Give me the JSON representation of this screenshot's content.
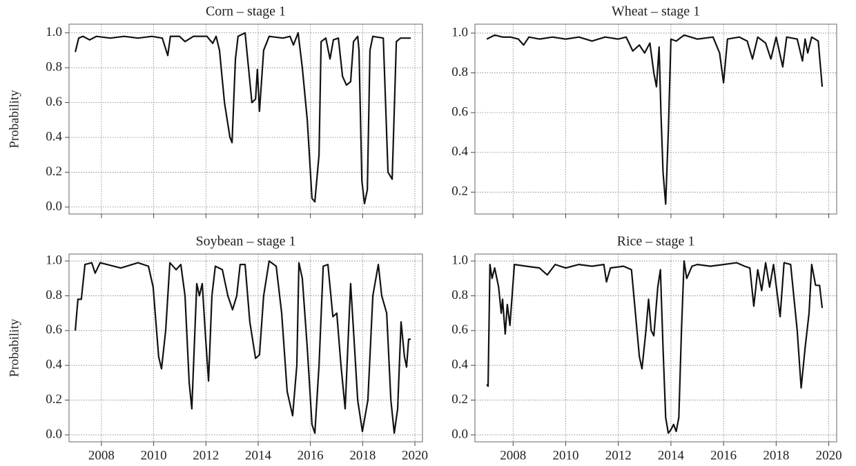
{
  "chart_data": [
    {
      "type": "line",
      "title": "Corn – stage 1",
      "ylabel": "Probability",
      "color": "#111111",
      "grid": true,
      "xtick_labels": false,
      "xlim": [
        2006.76,
        2020.29
      ],
      "ylim": [
        -0.04,
        1.05
      ],
      "xticks": [
        2008,
        2010,
        2012,
        2014,
        2016,
        2018,
        2020
      ],
      "yticks": [
        {
          "value": 0,
          "label": "0.0"
        },
        0.2,
        0.4,
        0.6,
        0.8,
        {
          "value": 1,
          "label": "1.0"
        }
      ],
      "x": [
        2007.0,
        2007.13,
        2007.29,
        2007.55,
        2007.81,
        2008.34,
        2008.87,
        2009.4,
        2009.93,
        2010.33,
        2010.54,
        2010.64,
        2010.99,
        2011.2,
        2011.52,
        2012.04,
        2012.26,
        2012.39,
        2012.52,
        2012.71,
        2012.92,
        2013.0,
        2013.13,
        2013.23,
        2013.5,
        2013.63,
        2013.76,
        2013.9,
        2013.97,
        2014.05,
        2014.21,
        2014.42,
        2014.95,
        2015.22,
        2015.35,
        2015.53,
        2015.69,
        2015.88,
        2016.06,
        2016.17,
        2016.33,
        2016.41,
        2016.59,
        2016.75,
        2016.88,
        2017.07,
        2017.23,
        2017.38,
        2017.54,
        2017.65,
        2017.81,
        2017.86,
        2017.97,
        2018.07,
        2018.18,
        2018.28,
        2018.39,
        2018.79,
        2018.97,
        2019.13,
        2019.29,
        2019.45,
        2019.84
      ],
      "values": [
        0.89,
        0.97,
        0.98,
        0.96,
        0.98,
        0.97,
        0.98,
        0.97,
        0.98,
        0.97,
        0.87,
        0.98,
        0.98,
        0.95,
        0.98,
        0.98,
        0.94,
        0.98,
        0.9,
        0.6,
        0.4,
        0.37,
        0.85,
        0.98,
        1.0,
        0.8,
        0.6,
        0.62,
        0.79,
        0.55,
        0.9,
        0.98,
        0.97,
        0.98,
        0.93,
        1.0,
        0.8,
        0.5,
        0.05,
        0.03,
        0.3,
        0.95,
        0.97,
        0.85,
        0.96,
        0.97,
        0.75,
        0.7,
        0.72,
        0.95,
        0.98,
        0.9,
        0.15,
        0.02,
        0.1,
        0.9,
        0.98,
        0.97,
        0.2,
        0.16,
        0.95,
        0.97,
        0.97
      ]
    },
    {
      "type": "line",
      "title": "Wheat – stage 1",
      "color": "#111111",
      "grid": true,
      "xtick_labels": false,
      "xlim": [
        2006.55,
        2020.3
      ],
      "ylim": [
        0.09,
        1.045
      ],
      "xticks": [
        2008,
        2010,
        2012,
        2014,
        2016,
        2018,
        2020
      ],
      "yticks": [
        0.2,
        0.4,
        0.6,
        0.8,
        {
          "value": 1,
          "label": "1.0"
        }
      ],
      "x": [
        2007.0,
        2007.3,
        2007.6,
        2007.9,
        2008.2,
        2008.4,
        2008.6,
        2009.0,
        2009.5,
        2010.0,
        2010.5,
        2011.0,
        2011.5,
        2012.0,
        2012.3,
        2012.55,
        2012.8,
        2013.0,
        2013.2,
        2013.35,
        2013.45,
        2013.55,
        2013.62,
        2013.7,
        2013.8,
        2013.9,
        2014.0,
        2014.2,
        2014.5,
        2015.0,
        2015.6,
        2015.85,
        2016.0,
        2016.15,
        2016.6,
        2016.9,
        2017.1,
        2017.3,
        2017.6,
        2017.8,
        2018.0,
        2018.25,
        2018.4,
        2018.8,
        2019.0,
        2019.1,
        2019.2,
        2019.35,
        2019.6,
        2019.75
      ],
      "values": [
        0.97,
        0.99,
        0.98,
        0.98,
        0.97,
        0.94,
        0.98,
        0.97,
        0.98,
        0.97,
        0.98,
        0.96,
        0.98,
        0.97,
        0.98,
        0.91,
        0.94,
        0.9,
        0.95,
        0.8,
        0.73,
        0.93,
        0.6,
        0.3,
        0.14,
        0.5,
        0.97,
        0.96,
        0.99,
        0.97,
        0.98,
        0.9,
        0.75,
        0.97,
        0.98,
        0.96,
        0.87,
        0.98,
        0.95,
        0.87,
        0.98,
        0.83,
        0.98,
        0.97,
        0.86,
        0.97,
        0.9,
        0.98,
        0.96,
        0.73
      ]
    },
    {
      "type": "line",
      "title": "Soybean – stage 1",
      "ylabel": "Probability",
      "color": "#111111",
      "grid": true,
      "xtick_labels": true,
      "xlim": [
        2006.76,
        2020.29
      ],
      "ylim": [
        -0.04,
        1.04
      ],
      "xticks": [
        2008,
        2010,
        2012,
        2014,
        2016,
        2018,
        2020
      ],
      "yticks": [
        {
          "value": 0,
          "label": "0.0"
        },
        0.2,
        0.4,
        0.6,
        0.8,
        {
          "value": 1,
          "label": "1.0"
        }
      ],
      "x": [
        2007.0,
        2007.1,
        2007.23,
        2007.37,
        2007.63,
        2007.76,
        2007.95,
        2008.74,
        2009.4,
        2009.8,
        2009.98,
        2010.19,
        2010.3,
        2010.46,
        2010.62,
        2010.86,
        2011.04,
        2011.2,
        2011.36,
        2011.46,
        2011.65,
        2011.75,
        2011.86,
        2011.97,
        2012.1,
        2012.23,
        2012.36,
        2012.63,
        2012.84,
        2013.02,
        2013.18,
        2013.31,
        2013.5,
        2013.68,
        2013.9,
        2014.05,
        2014.21,
        2014.42,
        2014.69,
        2014.9,
        2015.11,
        2015.32,
        2015.48,
        2015.56,
        2015.69,
        2015.88,
        2016.06,
        2016.17,
        2016.33,
        2016.49,
        2016.67,
        2016.86,
        2017.01,
        2017.17,
        2017.33,
        2017.46,
        2017.54,
        2017.65,
        2017.81,
        2017.99,
        2018.2,
        2018.39,
        2018.6,
        2018.73,
        2018.92,
        2019.08,
        2019.21,
        2019.34,
        2019.47,
        2019.6,
        2019.68,
        2019.76,
        2019.84
      ],
      "values": [
        0.6,
        0.78,
        0.78,
        0.98,
        0.99,
        0.93,
        0.99,
        0.96,
        0.99,
        0.97,
        0.85,
        0.45,
        0.38,
        0.6,
        0.99,
        0.95,
        0.98,
        0.8,
        0.3,
        0.15,
        0.87,
        0.8,
        0.87,
        0.6,
        0.31,
        0.8,
        0.97,
        0.95,
        0.8,
        0.72,
        0.8,
        0.98,
        0.98,
        0.65,
        0.44,
        0.46,
        0.8,
        1.0,
        0.97,
        0.7,
        0.25,
        0.11,
        0.4,
        0.99,
        0.9,
        0.5,
        0.06,
        0.01,
        0.4,
        0.97,
        0.98,
        0.68,
        0.7,
        0.4,
        0.15,
        0.6,
        0.87,
        0.6,
        0.2,
        0.02,
        0.2,
        0.8,
        0.98,
        0.8,
        0.7,
        0.2,
        0.01,
        0.15,
        0.65,
        0.45,
        0.39,
        0.55,
        0.55
      ]
    },
    {
      "type": "line",
      "title": "Rice – stage 1",
      "color": "#111111",
      "grid": true,
      "xtick_labels": true,
      "xlim": [
        2006.55,
        2020.3
      ],
      "ylim": [
        -0.04,
        1.04
      ],
      "xticks": [
        2008,
        2010,
        2012,
        2014,
        2016,
        2018,
        2020
      ],
      "yticks": [
        {
          "value": 0,
          "label": "0.0"
        },
        0.2,
        0.4,
        0.6,
        0.8,
        {
          "value": 1,
          "label": "1.0"
        }
      ],
      "x": [
        2007.0,
        2007.05,
        2007.12,
        2007.2,
        2007.3,
        2007.45,
        2007.55,
        2007.6,
        2007.7,
        2007.78,
        2007.88,
        2008.05,
        2008.5,
        2009.0,
        2009.3,
        2009.6,
        2010.0,
        2010.5,
        2011.0,
        2011.45,
        2011.55,
        2011.7,
        2012.2,
        2012.5,
        2012.65,
        2012.8,
        2012.9,
        2013.05,
        2013.15,
        2013.25,
        2013.35,
        2013.5,
        2013.6,
        2013.7,
        2013.8,
        2013.9,
        2014.0,
        2014.1,
        2014.2,
        2014.3,
        2014.4,
        2014.5,
        2014.6,
        2014.8,
        2015.0,
        2015.5,
        2016.0,
        2016.5,
        2016.8,
        2017.0,
        2017.15,
        2017.3,
        2017.45,
        2017.6,
        2017.75,
        2017.9,
        2018.05,
        2018.15,
        2018.3,
        2018.55,
        2018.8,
        2018.95,
        2019.1,
        2019.25,
        2019.35,
        2019.5,
        2019.65,
        2019.75
      ],
      "values": [
        0.29,
        0.28,
        0.98,
        0.9,
        0.96,
        0.85,
        0.7,
        0.78,
        0.58,
        0.75,
        0.63,
        0.98,
        0.97,
        0.96,
        0.92,
        0.98,
        0.96,
        0.98,
        0.97,
        0.98,
        0.88,
        0.96,
        0.97,
        0.95,
        0.7,
        0.45,
        0.38,
        0.6,
        0.78,
        0.6,
        0.57,
        0.85,
        0.95,
        0.5,
        0.1,
        0.01,
        0.03,
        0.06,
        0.02,
        0.1,
        0.6,
        1.0,
        0.9,
        0.97,
        0.98,
        0.97,
        0.98,
        0.99,
        0.97,
        0.96,
        0.74,
        0.95,
        0.83,
        0.99,
        0.85,
        0.98,
        0.8,
        0.68,
        0.99,
        0.98,
        0.6,
        0.27,
        0.5,
        0.7,
        0.98,
        0.86,
        0.86,
        0.73
      ]
    }
  ]
}
